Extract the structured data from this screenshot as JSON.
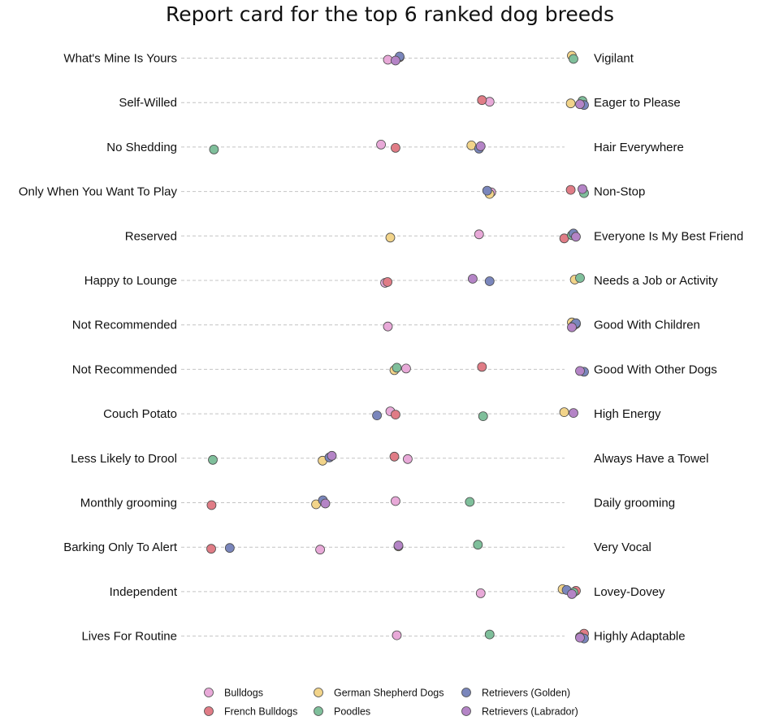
{
  "chart_data": {
    "type": "scatter",
    "title": "Report card for the top 6 ranked dog breeds",
    "xlim": [
      1,
      5
    ],
    "grid": false,
    "legend_position": "bottom",
    "traits": [
      {
        "left": "What's Mine Is Yours",
        "right": "Vigilant"
      },
      {
        "left": "Self-Willed",
        "right": "Eager to Please"
      },
      {
        "left": "No Shedding",
        "right": "Hair Everywhere"
      },
      {
        "left": "Only When You Want To Play",
        "right": "Non-Stop"
      },
      {
        "left": "Reserved",
        "right": "Everyone Is My Best Friend"
      },
      {
        "left": "Happy to Lounge",
        "right": "Needs a Job or Activity"
      },
      {
        "left": "Not Recommended",
        "right": "Good With Children"
      },
      {
        "left": "Not Recommended",
        "right": "Good With Other Dogs"
      },
      {
        "left": "Couch Potato",
        "right": "High Energy"
      },
      {
        "left": "Less Likely to Drool",
        "right": "Always Have a Towel"
      },
      {
        "left": "Monthly grooming",
        "right": "Daily grooming"
      },
      {
        "left": "Barking Only To Alert",
        "right": "Very Vocal"
      },
      {
        "left": "Independent",
        "right": "Lovey-Dovey"
      },
      {
        "left": "Lives For Routine",
        "right": "Highly Adaptable"
      }
    ],
    "series": [
      {
        "name": "Bulldogs",
        "color": "#e8a9d8",
        "values": [
          3.0,
          4.0,
          2.9,
          4.0,
          4.0,
          2.9,
          3.0,
          3.1,
          3.0,
          3.1,
          3.1,
          2.2,
          4.0,
          3.0
        ]
      },
      {
        "name": "French Bulldogs",
        "color": "#e07c86",
        "values": [
          3.1,
          3.9,
          3.1,
          4.9,
          4.9,
          2.9,
          5.0,
          3.9,
          3.1,
          3.0,
          1.1,
          1.0,
          5.0,
          5.0
        ]
      },
      {
        "name": "German Shepherd Dogs",
        "color": "#f2d48a",
        "values": [
          5.0,
          4.9,
          3.9,
          4.0,
          3.0,
          4.9,
          5.0,
          3.0,
          4.9,
          2.2,
          2.2,
          3.0,
          4.9,
          5.0
        ]
      },
      {
        "name": "Poodles",
        "color": "#7fbf9b",
        "values": [
          5.0,
          5.0,
          1.1,
          5.0,
          5.0,
          5.0,
          5.0,
          3.0,
          4.0,
          1.0,
          3.9,
          3.9,
          5.0,
          4.0
        ]
      },
      {
        "name": "Retrievers (Golden)",
        "color": "#7a86bc",
        "values": [
          3.1,
          5.0,
          4.0,
          4.0,
          5.0,
          4.0,
          5.0,
          5.0,
          2.9,
          2.3,
          2.3,
          1.2,
          4.9,
          5.0
        ]
      },
      {
        "name": "Retrievers (Labrador)",
        "color": "#b484c6",
        "values": [
          3.1,
          5.0,
          4.0,
          5.0,
          5.0,
          3.8,
          5.0,
          5.0,
          5.0,
          2.3,
          2.3,
          3.0,
          5.0,
          5.0
        ]
      }
    ]
  }
}
